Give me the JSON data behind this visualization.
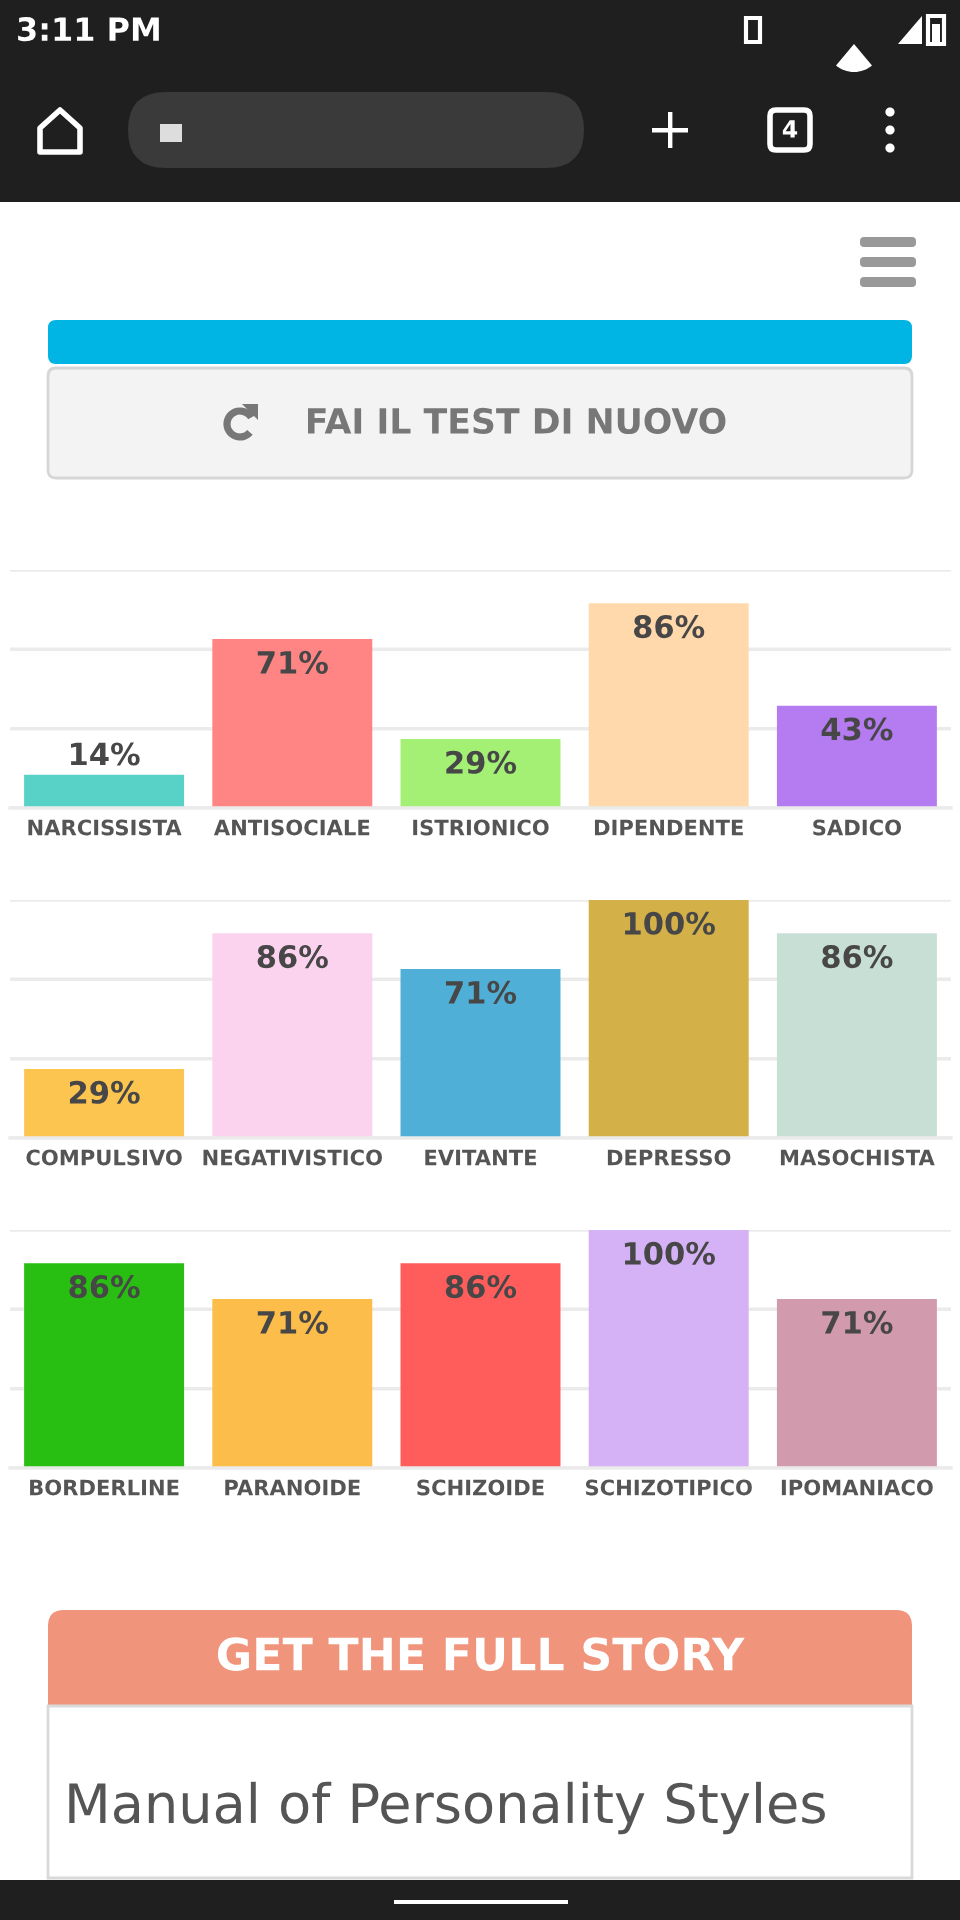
{
  "chart_data": [
    {
      "type": "bar",
      "categories": [
        "NARCISSISTA",
        "ANTISOCIALE",
        "ISTRIONICO",
        "DIPENDENTE",
        "SADICO"
      ],
      "values": [
        14,
        71,
        29,
        86,
        43
      ],
      "value_labels": [
        "14%",
        "71%",
        "29%",
        "86%",
        "43%"
      ],
      "colors": [
        "#58d1c7",
        "#ff8585",
        "#a3f075",
        "#ffd9ab",
        "#b57cf2"
      ],
      "ylim": [
        0,
        100
      ],
      "yticks": [
        {
          "value": 0,
          "label": null
        },
        {
          "value": 33.3,
          "label": null
        },
        {
          "value": 66.7,
          "label": null
        },
        {
          "value": 100,
          "label": null
        }
      ],
      "grid": "y",
      "tick_labels": "x",
      "annotations": [
        "3:11 PM",
        "4",
        "FAI IL TEST DI NUOVO"
      ]
    },
    {
      "type": "bar",
      "categories": [
        "COMPULSIVO",
        "NEGATIVISTICO",
        "EVITANTE",
        "DEPRESSO",
        "MASOCHISTA"
      ],
      "values": [
        29,
        86,
        71,
        100,
        86
      ],
      "value_labels": [
        "29%",
        "86%",
        "71%",
        "100%",
        "86%"
      ],
      "colors": [
        "#fcc550",
        "#fcd3ef",
        "#50afd6",
        "#d4b049",
        "#c8dfd5"
      ],
      "ylim": [
        0,
        100
      ],
      "yticks": [
        {
          "value": 0,
          "label": null
        },
        {
          "value": 33.3,
          "label": null
        },
        {
          "value": 66.7,
          "label": null
        },
        {
          "value": 100,
          "label": null
        }
      ],
      "grid": "y",
      "tick_labels": "x"
    },
    {
      "type": "bar",
      "categories": [
        "BORDERLINE",
        "PARANOIDE",
        "SCHIZOIDE",
        "SCHIZOTIPICO",
        "IPOMANIACO"
      ],
      "values": [
        86,
        71,
        86,
        100,
        71
      ],
      "value_labels": [
        "86%",
        "71%",
        "86%",
        "100%",
        "71%"
      ],
      "colors": [
        "#28bf12",
        "#fdbd4a",
        "#ff5c5c",
        "#d5b1f6",
        "#d29aad"
      ],
      "ylim": [
        0,
        100
      ],
      "yticks": [
        {
          "value": 0,
          "label": null
        },
        {
          "value": 33.3,
          "label": null
        },
        {
          "value": 66.7,
          "label": null
        },
        {
          "value": 100,
          "label": null
        }
      ],
      "grid": "y",
      "tick_labels": "x",
      "annotations": [
        "GET THE FULL STORY",
        "Manual of Personality Styles"
      ]
    }
  ]
}
